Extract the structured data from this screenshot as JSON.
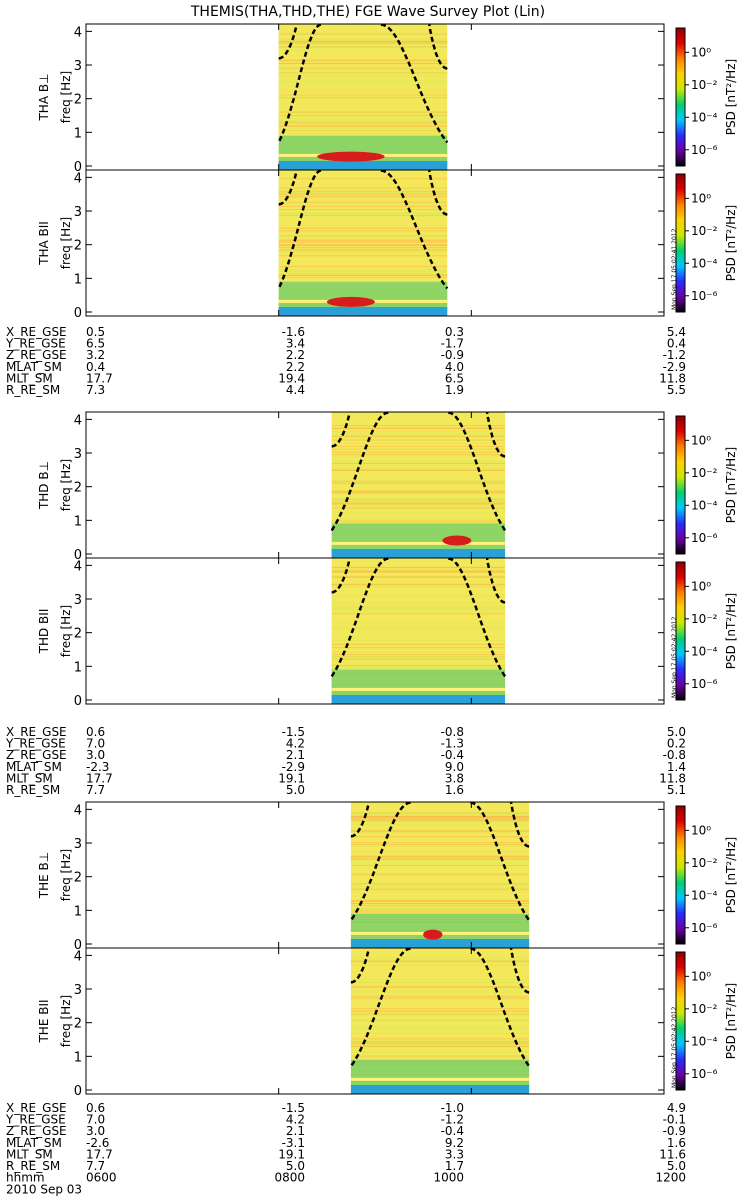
{
  "title": "THEMIS(THA,THD,THE) FGE Wave Survey Plot (Lin)",
  "colors": {
    "background": "#ffffff",
    "frame": "#000000",
    "spectrogram_base": "#f2e85a",
    "spectrogram_low": "#6ecf6a",
    "spectrogram_floor": "#2aa0d8",
    "enhancement": "#d61c1c",
    "dashed_curve": "#000000"
  },
  "colorbar": {
    "label": "PSD [nT²/Hz]",
    "ticks": [
      "10⁰",
      "10⁻²",
      "10⁻⁴",
      "10⁻⁶"
    ],
    "tick_values": [
      0,
      -2,
      -4,
      -6
    ],
    "range_log10": [
      -7,
      1.5
    ],
    "colors": [
      "#000000",
      "#6a00a8",
      "#2b2bff",
      "#00c8ff",
      "#00d070",
      "#c8e800",
      "#ffd200",
      "#ff8000",
      "#e00000",
      "#900000"
    ]
  },
  "time_axis": {
    "tick_labels": [
      "0600",
      "0800",
      "1000",
      "1200"
    ],
    "range_hours": [
      6,
      12
    ],
    "date_label": "2010 Sep 03",
    "row_label": "hhmm"
  },
  "chart_data": [
    {
      "type": "heatmap",
      "probe": "THA",
      "panels": [
        {
          "label": "THA B⊥",
          "ylabel": "freq [Hz]",
          "ylim": [
            0,
            4
          ],
          "yticks": [
            0,
            1,
            2,
            3,
            4
          ],
          "data_hours": [
            8.0,
            9.75
          ],
          "enhancement": {
            "center_hour": 8.75,
            "half_width_hours": 0.35,
            "freq_hz": 0.28
          },
          "stamp": ""
        },
        {
          "label": "THA BII",
          "ylabel": "freq [Hz]",
          "ylim": [
            0,
            4
          ],
          "yticks": [
            0,
            1,
            2,
            3,
            4
          ],
          "data_hours": [
            8.0,
            9.75
          ],
          "enhancement": {
            "center_hour": 8.75,
            "half_width_hours": 0.25,
            "freq_hz": 0.3
          },
          "stamp": "Mon Sep 17 05:02:41 2012"
        }
      ],
      "curve_params": {
        "center_hour": 8.75,
        "min_freq_hz": 0.5,
        "scale_hours": 0.95
      },
      "ephemeris": [
        {
          "label": "X_RE_GSE",
          "values": [
            "0.5",
            "-1.6",
            "0.3",
            "5.4"
          ]
        },
        {
          "label": "Y_RE_GSE",
          "values": [
            "6.5",
            "3.4",
            "-1.7",
            "0.4"
          ]
        },
        {
          "label": "Z_RE_GSE",
          "values": [
            "3.2",
            "2.2",
            "-0.9",
            "-1.2"
          ]
        },
        {
          "label": "MLAT_SM",
          "values": [
            "0.4",
            "2.2",
            "4.0",
            "-2.9"
          ]
        },
        {
          "label": "MLT_SM",
          "values": [
            "17.7",
            "19.4",
            "6.5",
            "11.8"
          ]
        },
        {
          "label": "R_RE_SM",
          "values": [
            "7.3",
            "4.4",
            "1.9",
            "5.5"
          ]
        }
      ]
    },
    {
      "type": "heatmap",
      "probe": "THD",
      "panels": [
        {
          "label": "THD B⊥",
          "ylabel": "freq [Hz]",
          "ylim": [
            0,
            4
          ],
          "yticks": [
            0,
            1,
            2,
            3,
            4
          ],
          "data_hours": [
            8.55,
            10.35
          ],
          "enhancement": {
            "center_hour": 9.85,
            "half_width_hours": 0.15,
            "freq_hz": 0.4
          },
          "stamp": ""
        },
        {
          "label": "THD BII",
          "ylabel": "freq [Hz]",
          "ylim": [
            0,
            4
          ],
          "yticks": [
            0,
            1,
            2,
            3,
            4
          ],
          "data_hours": [
            8.55,
            10.35
          ],
          "enhancement": null,
          "stamp": "Mon Sep 17 05:02:42 2012"
        }
      ],
      "curve_params": {
        "center_hour": 9.45,
        "min_freq_hz": 0.5,
        "scale_hours": 0.95
      },
      "ephemeris": [
        {
          "label": "X_RE_GSE",
          "values": [
            "0.6",
            "-1.5",
            "-0.8",
            "5.0"
          ]
        },
        {
          "label": "Y_RE_GSE",
          "values": [
            "7.0",
            "4.2",
            "-1.3",
            "0.2"
          ]
        },
        {
          "label": "Z_RE_GSE",
          "values": [
            "3.0",
            "2.1",
            "-0.4",
            "-0.8"
          ]
        },
        {
          "label": "MLAT_SM",
          "values": [
            "-2.3",
            "-2.9",
            "9.0",
            "1.4"
          ]
        },
        {
          "label": "MLT_SM",
          "values": [
            "17.7",
            "19.1",
            "3.8",
            "11.8"
          ]
        },
        {
          "label": "R_RE_SM",
          "values": [
            "7.7",
            "5.0",
            "1.6",
            "5.1"
          ]
        }
      ]
    },
    {
      "type": "heatmap",
      "probe": "THE",
      "panels": [
        {
          "label": "THE B⊥",
          "ylabel": "freq [Hz]",
          "ylim": [
            0,
            4
          ],
          "yticks": [
            0,
            1,
            2,
            3,
            4
          ],
          "data_hours": [
            8.75,
            10.6
          ],
          "enhancement": {
            "center_hour": 9.6,
            "half_width_hours": 0.1,
            "freq_hz": 0.28
          },
          "stamp": ""
        },
        {
          "label": "THE BII",
          "ylabel": "freq [Hz]",
          "ylim": [
            0,
            4
          ],
          "yticks": [
            0,
            1,
            2,
            3,
            4
          ],
          "data_hours": [
            8.75,
            10.6
          ],
          "enhancement": null,
          "stamp": "Mon Sep 17 05:02:42 2012"
        }
      ],
      "curve_params": {
        "center_hour": 9.68,
        "min_freq_hz": 0.5,
        "scale_hours": 0.95
      },
      "ephemeris": [
        {
          "label": "X_RE_GSE",
          "values": [
            "0.6",
            "-1.5",
            "-1.0",
            "4.9"
          ]
        },
        {
          "label": "Y_RE_GSE",
          "values": [
            "7.0",
            "4.2",
            "-1.2",
            "-0.1"
          ]
        },
        {
          "label": "Z_RE_GSE",
          "values": [
            "3.0",
            "2.1",
            "-0.4",
            "-0.9"
          ]
        },
        {
          "label": "MLAT_SM",
          "values": [
            "-2.6",
            "-3.1",
            "9.2",
            "1.6"
          ]
        },
        {
          "label": "MLT_SM",
          "values": [
            "17.7",
            "19.1",
            "3.3",
            "11.6"
          ]
        },
        {
          "label": "R_RE_SM",
          "values": [
            "7.7",
            "5.0",
            "1.7",
            "5.0"
          ]
        }
      ]
    }
  ]
}
